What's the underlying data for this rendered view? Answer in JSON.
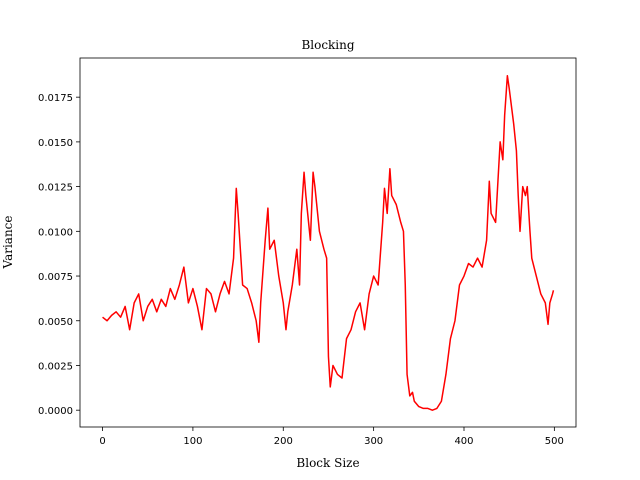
{
  "chart_data": {
    "type": "line",
    "title": "Blocking",
    "x_label": "Block Size",
    "y_label": "Variance",
    "x": [
      0,
      5,
      10,
      15,
      20,
      25,
      30,
      35,
      40,
      45,
      50,
      55,
      60,
      65,
      70,
      75,
      80,
      85,
      90,
      95,
      100,
      105,
      110,
      115,
      120,
      125,
      130,
      135,
      140,
      145,
      148,
      150,
      155,
      160,
      165,
      170,
      173,
      175,
      180,
      183,
      185,
      190,
      195,
      200,
      203,
      205,
      210,
      215,
      218,
      220,
      223,
      225,
      230,
      233,
      235,
      240,
      245,
      248,
      250,
      252,
      255,
      260,
      265,
      270,
      275,
      280,
      285,
      290,
      295,
      300,
      305,
      310,
      312,
      315,
      318,
      320,
      325,
      330,
      333,
      335,
      337,
      340,
      343,
      345,
      350,
      355,
      360,
      365,
      370,
      375,
      380,
      385,
      390,
      395,
      400,
      405,
      410,
      415,
      420,
      425,
      428,
      430,
      435,
      440,
      443,
      445,
      448,
      450,
      455,
      458,
      460,
      462,
      465,
      468,
      470,
      473,
      475,
      480,
      485,
      490,
      493,
      495,
      498,
      499
    ],
    "series": [
      {
        "color": "#ff0000",
        "values": [
          0.0052,
          0.005,
          0.0053,
          0.0055,
          0.0052,
          0.0058,
          0.0045,
          0.006,
          0.0065,
          0.005,
          0.0058,
          0.0062,
          0.0055,
          0.0062,
          0.0058,
          0.0068,
          0.0062,
          0.007,
          0.008,
          0.006,
          0.0068,
          0.0058,
          0.0045,
          0.0068,
          0.0065,
          0.0055,
          0.0065,
          0.0072,
          0.0065,
          0.0085,
          0.0124,
          0.011,
          0.007,
          0.0068,
          0.006,
          0.005,
          0.0038,
          0.006,
          0.0095,
          0.0113,
          0.009,
          0.0095,
          0.0075,
          0.006,
          0.0045,
          0.0055,
          0.007,
          0.009,
          0.007,
          0.011,
          0.0133,
          0.012,
          0.0095,
          0.0133,
          0.0125,
          0.01,
          0.009,
          0.0085,
          0.003,
          0.0013,
          0.0025,
          0.002,
          0.0018,
          0.004,
          0.0045,
          0.0055,
          0.006,
          0.0045,
          0.0065,
          0.0075,
          0.007,
          0.0105,
          0.0124,
          0.011,
          0.0135,
          0.012,
          0.0115,
          0.0105,
          0.01,
          0.007,
          0.002,
          0.0008,
          0.001,
          0.0005,
          0.0002,
          0.0001,
          0.0001,
          0,
          0.0001,
          0.0005,
          0.002,
          0.004,
          0.005,
          0.007,
          0.0075,
          0.0082,
          0.008,
          0.0085,
          0.008,
          0.0095,
          0.0128,
          0.011,
          0.0105,
          0.015,
          0.014,
          0.0165,
          0.0187,
          0.018,
          0.016,
          0.0145,
          0.012,
          0.01,
          0.0125,
          0.012,
          0.0125,
          0.01,
          0.0085,
          0.0075,
          0.0065,
          0.006,
          0.0048,
          0.006,
          0.0065,
          0.0067
        ]
      }
    ],
    "xlim": [
      -24.95,
      523.95
    ],
    "ylim": [
      -0.00094,
      0.01969
    ],
    "xticks": [
      0,
      100,
      200,
      300,
      400,
      500
    ],
    "yticks": [
      {
        "value": 0,
        "label": "0.0000"
      },
      0.0025,
      {
        "value": 0.005,
        "label": "0.0050"
      },
      0.0075,
      {
        "value": 0.01,
        "label": "0.0100"
      },
      0.0125,
      {
        "value": 0.015,
        "label": "0.0150"
      },
      0.0175
    ]
  }
}
